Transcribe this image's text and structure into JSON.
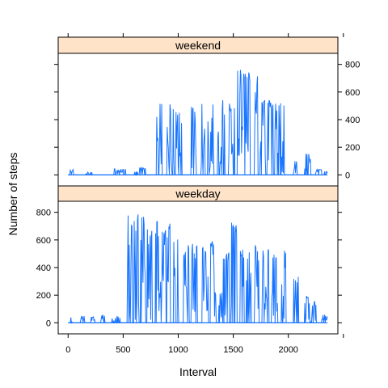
{
  "chart_data": {
    "type": "line",
    "xlabel": "Interval",
    "ylabel": "Number of steps",
    "xlim": [
      -90,
      2450
    ],
    "ylim": [
      -80,
      880
    ],
    "xticks": [
      0,
      500,
      1000,
      1500,
      2000
    ],
    "yticks": [
      0,
      200,
      400,
      600,
      800
    ],
    "grid": false,
    "panels": [
      {
        "name": "weekend",
        "color": "#1874ff",
        "strip_color": "#ffe3c8",
        "day_envelopes": [
          {
            "start": 0,
            "end": 2355,
            "bursts": [
              [
                20,
                45,
                40
              ],
              [
                160,
                220,
                20
              ],
              [
                420,
                520,
                45
              ],
              [
                600,
                630,
                30
              ],
              [
                650,
                700,
                55
              ],
              [
                2250,
                2300,
                40
              ],
              [
                2330,
                2355,
                25
              ]
            ]
          },
          {
            "start": 0,
            "end": 2355,
            "bursts": [
              [
                800,
                850,
                545
              ],
              [
                900,
                960,
                545
              ],
              [
                980,
                1030,
                505
              ],
              [
                1120,
                1160,
                520
              ],
              [
                1200,
                1240,
                520
              ]
            ]
          },
          {
            "start": 0,
            "end": 2355,
            "bursts": [
              [
                1270,
                1320,
                545
              ],
              [
                1360,
                1420,
                545
              ],
              [
                1460,
                1520,
                525
              ],
              [
                1540,
                1600,
                780
              ],
              [
                1610,
                1650,
                780
              ]
            ]
          },
          {
            "start": 0,
            "end": 2355,
            "bursts": [
              [
                1690,
                1720,
                765
              ],
              [
                1740,
                1790,
                545
              ],
              [
                1810,
                1870,
                540
              ],
              [
                1880,
                1920,
                525
              ],
              [
                1930,
                1960,
                525
              ],
              [
                2050,
                2080,
                110
              ],
              [
                2150,
                2200,
                160
              ]
            ]
          }
        ]
      },
      {
        "name": "weekday",
        "color": "#1874ff",
        "strip_color": "#ffe3c8",
        "day_envelopes": [
          {
            "start": 0,
            "end": 2355,
            "bursts": [
              [
                20,
                40,
                70
              ],
              [
                110,
                150,
                50
              ],
              [
                210,
                240,
                45
              ],
              [
                300,
                330,
                60
              ],
              [
                400,
                430,
                40
              ],
              [
                440,
                470,
                55
              ]
            ]
          },
          {
            "start": 0,
            "end": 2355,
            "bursts": [
              [
                540,
                590,
                790
              ],
              [
                600,
                640,
                790
              ],
              [
                650,
                700,
                770
              ],
              [
                720,
                760,
                720
              ],
              [
                790,
                840,
                790
              ],
              [
                850,
                890,
                745
              ],
              [
                900,
                930,
                745
              ]
            ]
          },
          {
            "start": 0,
            "end": 2355,
            "bursts": [
              [
                960,
                1000,
                620
              ],
              [
                1050,
                1100,
                570
              ],
              [
                1120,
                1170,
                590
              ],
              [
                1220,
                1270,
                600
              ],
              [
                1290,
                1340,
                595
              ],
              [
                1370,
                1410,
                540
              ],
              [
                1420,
                1460,
                520
              ]
            ]
          },
          {
            "start": 0,
            "end": 2355,
            "bursts": [
              [
                1480,
                1530,
                760
              ],
              [
                1560,
                1600,
                560
              ],
              [
                1620,
                1660,
                530
              ],
              [
                1690,
                1730,
                600
              ],
              [
                1760,
                1820,
                535
              ],
              [
                1850,
                1900,
                500
              ],
              [
                1940,
                1980,
                545
              ],
              [
                2050,
                2090,
                340
              ],
              [
                2150,
                2190,
                200
              ],
              [
                2200,
                2250,
                160
              ],
              [
                2300,
                2330,
                60
              ],
              [
                2340,
                2355,
                50
              ]
            ]
          }
        ]
      }
    ]
  }
}
